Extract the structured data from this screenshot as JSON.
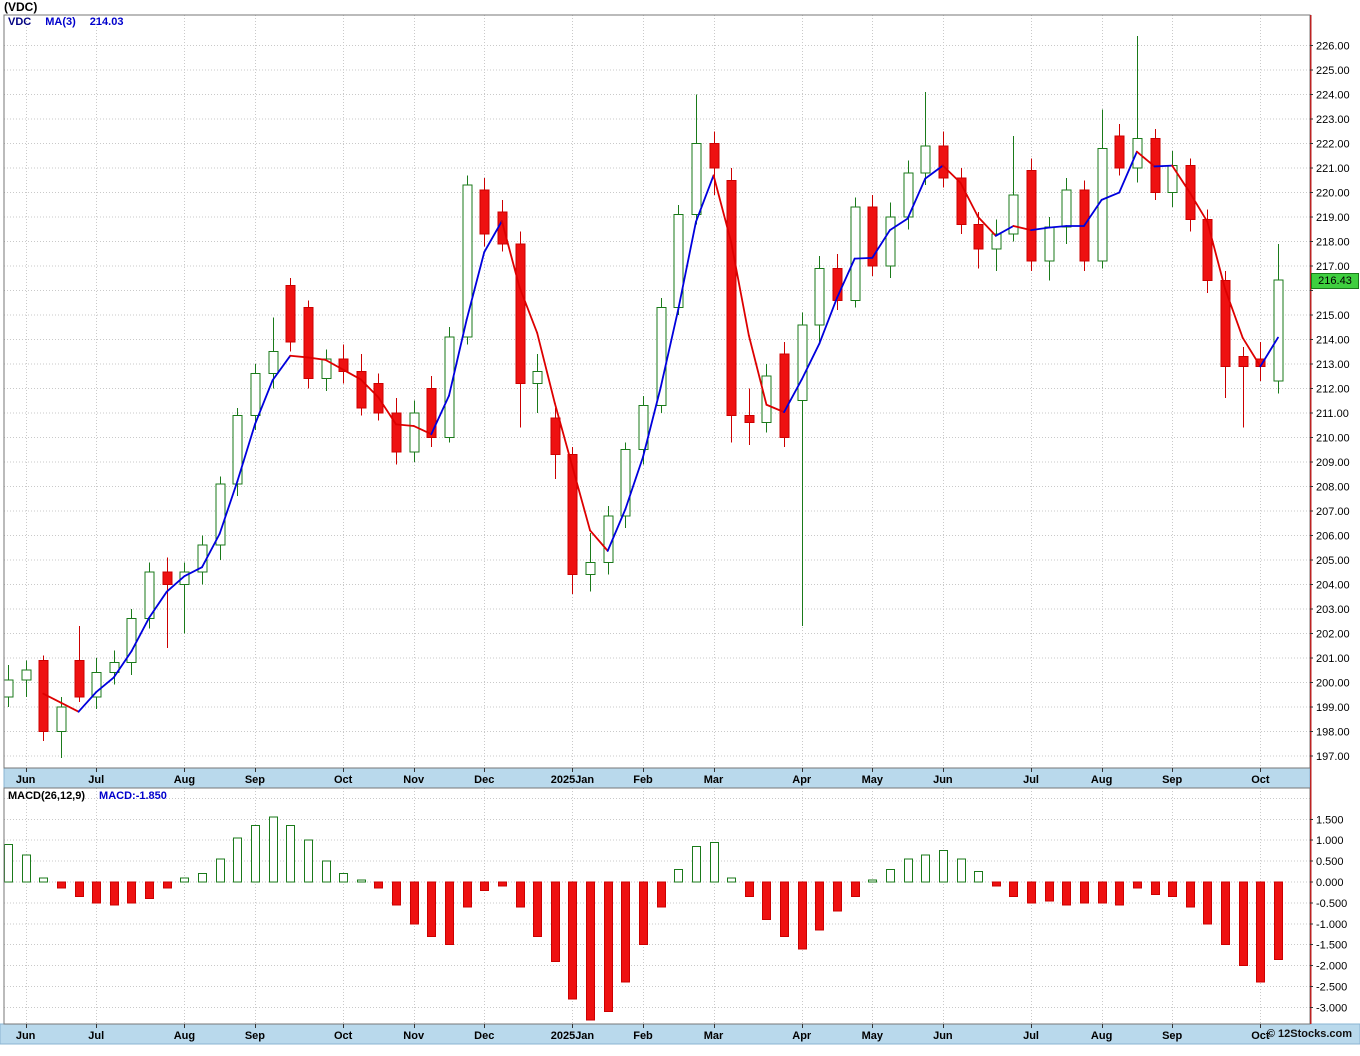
{
  "title": "(VDC)",
  "watermark": "© 12Stocks.com",
  "legend": {
    "symbol": "VDC",
    "ma_label": "MA(3)",
    "ma_value": "214.03"
  },
  "macd_legend": {
    "label": "MACD(26,12,9)",
    "value_label": "MACD:-1.850"
  },
  "price_tag": "216.43",
  "colors": {
    "up": "#1a7a1a",
    "up_fill": "#ffffff",
    "down": "#cc0000",
    "down_fill": "#ee1111",
    "ma_up": "#0000dd",
    "ma_down": "#dd0000",
    "grid": "#c9c9c9",
    "axis_strip": "#b9d9ec",
    "strip_border": "#8ab4d2",
    "plot_border": "#777777",
    "right_border": "#bb2222",
    "tick": "#333333",
    "tag_bg": "#3fcf3f"
  },
  "chart_data": {
    "type": "candlestick",
    "symbol": "VDC",
    "frequency": "weekly",
    "title": "(VDC)",
    "legend_position": "top-left",
    "grid": true,
    "last_price": 216.43,
    "ma_period": 3,
    "ma_last_value": 214.03,
    "price_axis": {
      "min": 196.5,
      "max": 227.25,
      "step": 1,
      "label_min": 197,
      "label_max": 226
    },
    "months": [
      {
        "label": "Jun",
        "i": 1
      },
      {
        "label": "Jul",
        "i": 5
      },
      {
        "label": "Aug",
        "i": 10
      },
      {
        "label": "Sep",
        "i": 14
      },
      {
        "label": "Oct",
        "i": 19
      },
      {
        "label": "Nov",
        "i": 23
      },
      {
        "label": "Dec",
        "i": 27
      },
      {
        "label": "2025Jan",
        "i": 32
      },
      {
        "label": "Feb",
        "i": 36
      },
      {
        "label": "Mar",
        "i": 40
      },
      {
        "label": "Apr",
        "i": 45
      },
      {
        "label": "May",
        "i": 49
      },
      {
        "label": "Jun",
        "i": 53
      },
      {
        "label": "Jul",
        "i": 58
      },
      {
        "label": "Aug",
        "i": 62
      },
      {
        "label": "Sep",
        "i": 66
      },
      {
        "label": "Oct",
        "i": 71
      }
    ],
    "candles_ohlc": [
      [
        199.4,
        200.7,
        199.0,
        200.1
      ],
      [
        200.1,
        200.9,
        199.4,
        200.5
      ],
      [
        200.9,
        201.1,
        197.6,
        198.0
      ],
      [
        198.0,
        199.4,
        196.9,
        199.0
      ],
      [
        200.9,
        202.3,
        199.2,
        199.4
      ],
      [
        199.4,
        201.0,
        198.9,
        200.4
      ],
      [
        200.4,
        201.3,
        199.9,
        200.8
      ],
      [
        200.8,
        203.0,
        200.3,
        202.6
      ],
      [
        202.6,
        204.9,
        202.2,
        204.5
      ],
      [
        204.5,
        205.1,
        201.4,
        204.0
      ],
      [
        204.0,
        204.9,
        202.0,
        204.5
      ],
      [
        204.5,
        206.0,
        204.0,
        205.6
      ],
      [
        205.6,
        208.4,
        205.0,
        208.1
      ],
      [
        208.1,
        211.2,
        207.6,
        210.9
      ],
      [
        210.9,
        213.0,
        210.3,
        212.6
      ],
      [
        212.6,
        214.9,
        212.0,
        213.5
      ],
      [
        216.2,
        216.5,
        213.5,
        213.9
      ],
      [
        215.3,
        215.6,
        212.0,
        212.4
      ],
      [
        212.4,
        213.6,
        211.9,
        213.2
      ],
      [
        213.2,
        213.8,
        212.2,
        212.7
      ],
      [
        212.7,
        213.4,
        210.9,
        211.2
      ],
      [
        212.2,
        212.6,
        210.7,
        211.0
      ],
      [
        211.0,
        211.6,
        208.9,
        209.4
      ],
      [
        209.4,
        211.5,
        209.0,
        211.0
      ],
      [
        212.0,
        212.5,
        209.6,
        210.0
      ],
      [
        210.0,
        214.5,
        209.8,
        214.1
      ],
      [
        214.1,
        220.7,
        213.8,
        220.3
      ],
      [
        220.1,
        220.6,
        217.8,
        218.3
      ],
      [
        219.2,
        219.7,
        217.6,
        217.9
      ],
      [
        217.9,
        218.4,
        210.4,
        212.2
      ],
      [
        212.2,
        213.4,
        211.0,
        212.7
      ],
      [
        210.8,
        211.2,
        208.3,
        209.3
      ],
      [
        209.3,
        209.6,
        203.6,
        204.4
      ],
      [
        204.4,
        206.1,
        203.7,
        204.9
      ],
      [
        204.9,
        207.2,
        204.4,
        206.8
      ],
      [
        206.8,
        209.8,
        206.3,
        209.5
      ],
      [
        209.5,
        211.7,
        208.9,
        211.3
      ],
      [
        211.3,
        215.7,
        211.0,
        215.3
      ],
      [
        215.3,
        219.5,
        215.0,
        219.1
      ],
      [
        219.1,
        224.0,
        218.7,
        222.0
      ],
      [
        222.0,
        222.5,
        219.9,
        221.0
      ],
      [
        220.5,
        221.0,
        209.8,
        210.9
      ],
      [
        210.9,
        212.0,
        209.7,
        210.6
      ],
      [
        210.6,
        213.0,
        210.2,
        212.5
      ],
      [
        213.4,
        213.9,
        209.6,
        210.0
      ],
      [
        211.5,
        215.1,
        202.3,
        214.6
      ],
      [
        214.6,
        217.4,
        213.9,
        216.9
      ],
      [
        216.9,
        217.5,
        215.2,
        215.6
      ],
      [
        215.6,
        219.8,
        215.3,
        219.4
      ],
      [
        219.4,
        219.9,
        216.6,
        217.0
      ],
      [
        217.0,
        219.6,
        216.5,
        219.0
      ],
      [
        219.0,
        221.3,
        218.5,
        220.8
      ],
      [
        220.8,
        224.1,
        220.3,
        221.9
      ],
      [
        221.9,
        222.5,
        220.2,
        220.6
      ],
      [
        220.6,
        221.0,
        218.3,
        218.7
      ],
      [
        218.7,
        219.2,
        216.9,
        217.7
      ],
      [
        217.7,
        218.9,
        216.8,
        218.3
      ],
      [
        218.3,
        222.3,
        218.0,
        219.9
      ],
      [
        220.9,
        221.4,
        216.8,
        217.2
      ],
      [
        217.2,
        219.0,
        216.4,
        218.6
      ],
      [
        218.6,
        220.6,
        217.9,
        220.1
      ],
      [
        220.1,
        220.5,
        216.8,
        217.2
      ],
      [
        217.2,
        223.4,
        216.9,
        221.8
      ],
      [
        222.3,
        222.8,
        220.7,
        221.0
      ],
      [
        221.0,
        226.4,
        220.4,
        222.2
      ],
      [
        222.2,
        222.6,
        219.7,
        220.0
      ],
      [
        220.0,
        221.7,
        219.4,
        221.1
      ],
      [
        221.1,
        221.4,
        218.4,
        218.9
      ],
      [
        218.9,
        219.3,
        215.9,
        216.4
      ],
      [
        216.4,
        216.8,
        211.6,
        212.9
      ],
      [
        213.3,
        213.7,
        210.4,
        212.9
      ],
      [
        213.2,
        213.9,
        212.3,
        212.9
      ],
      [
        212.3,
        217.9,
        211.8,
        216.43
      ]
    ],
    "macd": {
      "label": "MACD(26,12,9)",
      "last_value": -1.85,
      "axis": {
        "min": -3.4,
        "max": 2.25,
        "step": 0.5,
        "label_min": -3.0,
        "label_max": 1.5
      },
      "histogram": [
        0.9,
        0.65,
        0.1,
        -0.15,
        -0.35,
        -0.5,
        -0.55,
        -0.5,
        -0.4,
        -0.15,
        0.1,
        0.2,
        0.55,
        1.05,
        1.35,
        1.55,
        1.35,
        1.0,
        0.5,
        0.2,
        0.05,
        -0.15,
        -0.55,
        -1.0,
        -1.3,
        -1.5,
        -0.6,
        -0.2,
        -0.1,
        -0.6,
        -1.3,
        -1.9,
        -2.8,
        -3.3,
        -3.1,
        -2.4,
        -1.5,
        -0.6,
        0.3,
        0.85,
        0.95,
        0.1,
        -0.35,
        -0.9,
        -1.3,
        -1.6,
        -1.15,
        -0.7,
        -0.35,
        0.05,
        0.3,
        0.55,
        0.65,
        0.75,
        0.55,
        0.25,
        -0.1,
        -0.35,
        -0.5,
        -0.45,
        -0.55,
        -0.5,
        -0.5,
        -0.55,
        -0.15,
        -0.3,
        -0.35,
        -0.6,
        -1.0,
        -1.5,
        -2.0,
        -2.4,
        -1.85
      ]
    }
  }
}
